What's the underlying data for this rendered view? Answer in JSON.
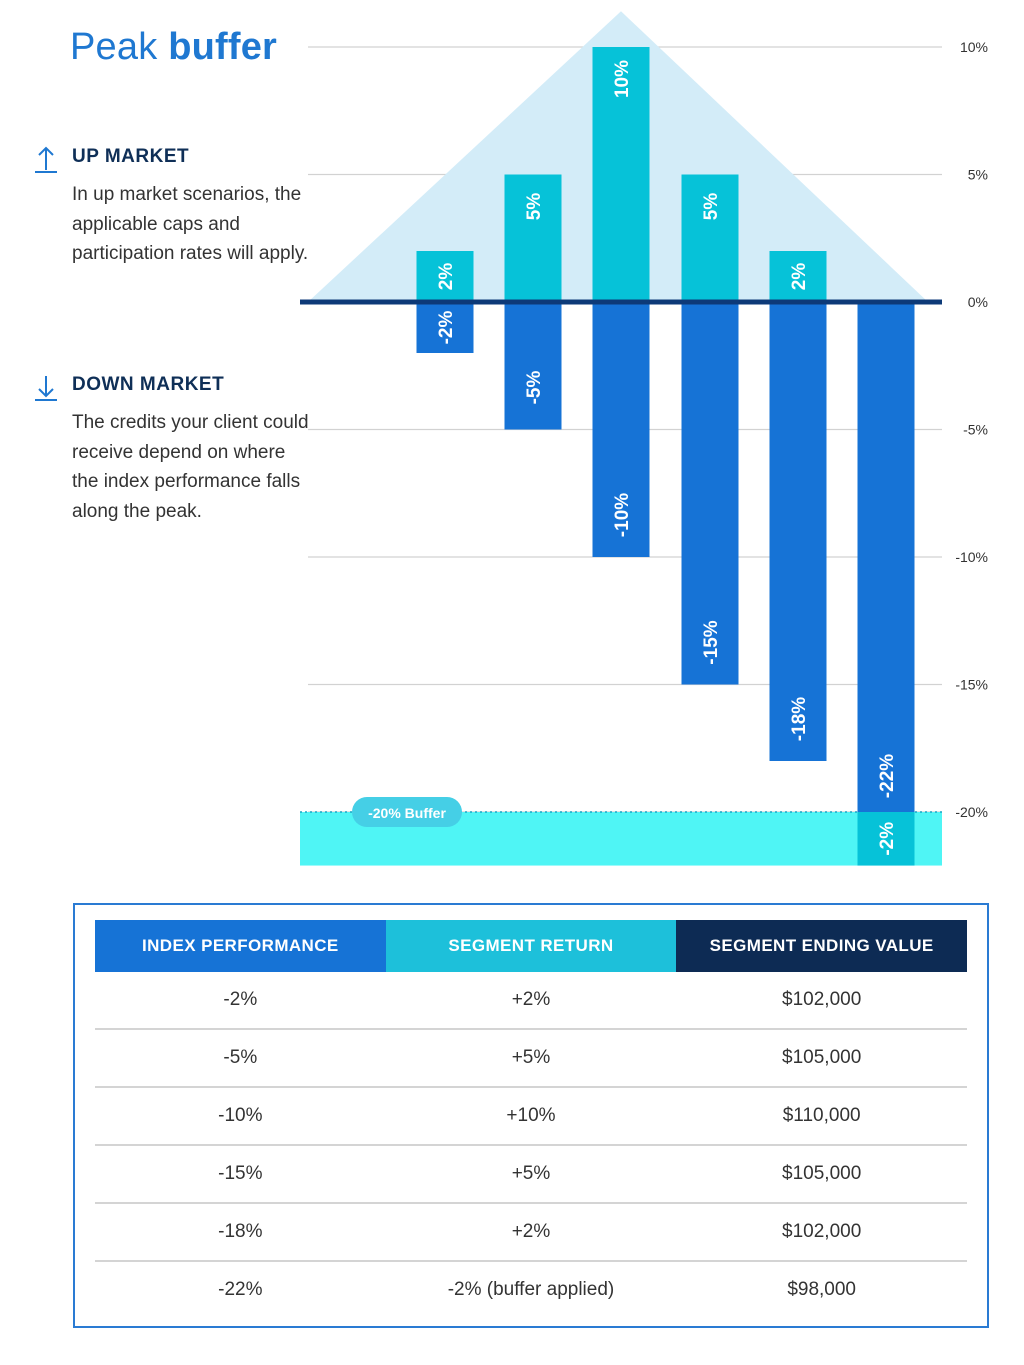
{
  "title": {
    "light": "Peak",
    "bold": "buffer"
  },
  "up_market": {
    "heading": "UP MARKET",
    "body": "In up market scenarios, the applicable caps and participation rates will apply.",
    "icon": "arrow-up-icon"
  },
  "down_market": {
    "heading": "DOWN MARKET",
    "body": "The credits your client could receive depend on where the index performance falls along the peak.",
    "icon": "arrow-down-icon"
  },
  "chart_data": {
    "type": "bar",
    "ylim": [
      -22,
      11
    ],
    "yticks": [
      10,
      5,
      0,
      -5,
      -10,
      -15,
      -20
    ],
    "ytick_labels": [
      "10%",
      "5%",
      "0%",
      "-5%",
      "-10%",
      "-15%",
      "-20%"
    ],
    "grid": true,
    "buffer_label": "-20% Buffer",
    "buffer_level": -20,
    "series": [
      {
        "values": [
          -2,
          -5,
          -10,
          -15,
          -18,
          -22
        ],
        "labels": [
          "-2%",
          "-5%",
          "-10%",
          "-15%",
          "-18%",
          "-22%"
        ]
      },
      {
        "values": [
          2,
          5,
          10,
          5,
          2,
          -2
        ],
        "labels": [
          "2%",
          "5%",
          "10%",
          "5%",
          "2%",
          "-2%"
        ]
      }
    ]
  },
  "colors": {
    "title": "#1f78d1",
    "index_bar": "#1673d6",
    "return_bar": "#06c2d8",
    "peak_fill": "#d3ecf8",
    "zero_line": "#0d3a78",
    "buffer_zone": "#4ff5f5",
    "buffer_pill": "#45cfe6",
    "header_index": "#1673d6",
    "header_return": "#1dc0da",
    "header_value": "#0d2b54"
  },
  "table": {
    "headers": [
      "INDEX PERFORMANCE",
      "SEGMENT RETURN",
      "SEGMENT ENDING VALUE"
    ],
    "rows": [
      [
        "-2%",
        "+2%",
        "$102,000"
      ],
      [
        "-5%",
        "+5%",
        "$105,000"
      ],
      [
        "-10%",
        "+10%",
        "$110,000"
      ],
      [
        "-15%",
        "+5%",
        "$105,000"
      ],
      [
        "-18%",
        "+2%",
        "$102,000"
      ],
      [
        "-22%",
        "-2% (buffer applied)",
        "$98,000"
      ]
    ]
  }
}
